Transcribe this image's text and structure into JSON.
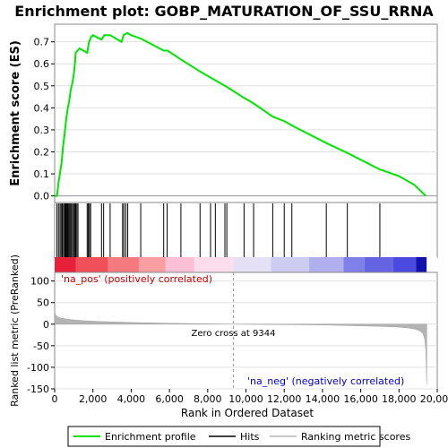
{
  "chart_data": {
    "type": "line",
    "title": "Enrichment plot: GOBP_MATURATION_OF_SSU_RRNA",
    "xlabel": "Rank in Ordered Dataset",
    "xlim": [
      0,
      20000
    ],
    "x_ticks": [
      0,
      2000,
      4000,
      6000,
      8000,
      10000,
      12000,
      14000,
      16000,
      18000,
      20000
    ],
    "x_tick_labels": [
      "0",
      "2,000",
      "4,000",
      "6,000",
      "8,000",
      "10,000",
      "12,000",
      "14,000",
      "16,000",
      "18,000",
      "20,000"
    ],
    "colors": {
      "enrichment": "#00e600",
      "hits": "#000000",
      "metric_fill": "#b4b4b4",
      "zero_line": "#999999",
      "pos_label": "#cc0000",
      "neg_label": "#0000cc",
      "grid": "#e0e0e0"
    },
    "top_panel": {
      "ylabel": "Enrichment score (ES)",
      "ylim": [
        -0.03,
        0.78
      ],
      "y_ticks": [
        0.0,
        0.1,
        0.2,
        0.3,
        0.4,
        0.5,
        0.6,
        0.7
      ],
      "y_tick_labels": [
        "0.0",
        "0.1",
        "0.2",
        "0.3",
        "0.4",
        "0.5",
        "0.6",
        "0.7"
      ],
      "series": [
        {
          "name": "Enrichment profile",
          "x": [
            0,
            120,
            200,
            280,
            360,
            440,
            520,
            600,
            680,
            760,
            840,
            920,
            1000,
            1060,
            1100,
            1200,
            1300,
            1700,
            1800,
            1900,
            2000,
            2450,
            2600,
            2900,
            3500,
            3600,
            3800,
            4000,
            4500,
            5700,
            5900,
            6600,
            7600,
            8200,
            8400,
            8900,
            9000,
            9900,
            10400,
            11400,
            12000,
            12400,
            14200,
            15300,
            17000,
            18000,
            18800,
            19400
          ],
          "y": [
            0.0,
            0.0,
            0.06,
            0.105,
            0.15,
            0.225,
            0.28,
            0.345,
            0.395,
            0.43,
            0.48,
            0.51,
            0.55,
            0.6,
            0.65,
            0.66,
            0.67,
            0.65,
            0.7,
            0.72,
            0.73,
            0.71,
            0.73,
            0.73,
            0.7,
            0.73,
            0.74,
            0.73,
            0.715,
            0.66,
            0.66,
            0.62,
            0.565,
            0.535,
            0.525,
            0.5,
            0.495,
            0.445,
            0.42,
            0.36,
            0.34,
            0.32,
            0.24,
            0.195,
            0.12,
            0.09,
            0.05,
            0.0
          ]
        }
      ]
    },
    "hits_panel": {
      "series_name": "Hits",
      "hit_ranks": [
        120,
        200,
        280,
        340,
        400,
        460,
        520,
        560,
        600,
        640,
        680,
        720,
        780,
        830,
        880,
        940,
        1000,
        1060,
        1100,
        1160,
        1220,
        1700,
        1760,
        1820,
        1880,
        2450,
        2560,
        2900,
        3550,
        3620,
        3720,
        3820,
        4500,
        5700,
        5880,
        6600,
        7600,
        8150,
        8400,
        8900,
        9000,
        9900,
        10400,
        11400,
        12000,
        12400,
        14200,
        15300,
        17000
      ]
    },
    "color_bar": {
      "positive_label": "'na_pos' (positively correlated)",
      "negative_label": "'na_neg' (negatively correlated)",
      "segments": [
        {
          "from": 0,
          "to": 1100,
          "color": "#e8203a"
        },
        {
          "from": 1100,
          "to": 2800,
          "color": "#f0505a"
        },
        {
          "from": 2800,
          "to": 4400,
          "color": "#f57a80"
        },
        {
          "from": 4400,
          "to": 5800,
          "color": "#fa9ea2"
        },
        {
          "from": 5800,
          "to": 7300,
          "color": "#fdbfd5"
        },
        {
          "from": 7300,
          "to": 9344,
          "color": "#fddcec"
        },
        {
          "from": 9344,
          "to": 11300,
          "color": "#e4e0f6"
        },
        {
          "from": 11300,
          "to": 13300,
          "color": "#cdcdf1"
        },
        {
          "from": 13300,
          "to": 15100,
          "color": "#b0b0ee"
        },
        {
          "from": 15100,
          "to": 16200,
          "color": "#8080ea"
        },
        {
          "from": 16200,
          "to": 17700,
          "color": "#6464e2"
        },
        {
          "from": 17700,
          "to": 18900,
          "color": "#4a4ae0"
        },
        {
          "from": 18900,
          "to": 19450,
          "color": "#1212a8"
        }
      ]
    },
    "bottom_panel": {
      "ylabel": "Ranked list metric (PreRanked)",
      "ylim": [
        -150,
        120
      ],
      "y_ticks": [
        100,
        50,
        0,
        -50,
        -100,
        -150
      ],
      "y_tick_labels": [
        "100",
        "50",
        "0",
        "-50",
        "-100",
        "-150"
      ],
      "zero_cross": 9344,
      "zero_cross_label": "Zero cross at 9344",
      "metric_series": {
        "name": "Ranking metric scores",
        "x": [
          0,
          30,
          80,
          150,
          300,
          600,
          1000,
          1500,
          2500,
          4000,
          6000,
          9344,
          12000,
          14000,
          16000,
          17000,
          18000,
          18500,
          18900,
          19100,
          19250,
          19350,
          19400,
          19450
        ],
        "y": [
          32,
          24,
          20,
          17,
          14,
          12,
          10,
          8,
          6,
          4,
          2,
          0,
          -1,
          -2,
          -4,
          -5,
          -7,
          -9,
          -12,
          -16,
          -22,
          -35,
          -60,
          -140
        ]
      }
    },
    "legend": [
      "Enrichment profile",
      "Hits",
      "Ranking metric scores"
    ],
    "legend_placement": "bottom"
  }
}
